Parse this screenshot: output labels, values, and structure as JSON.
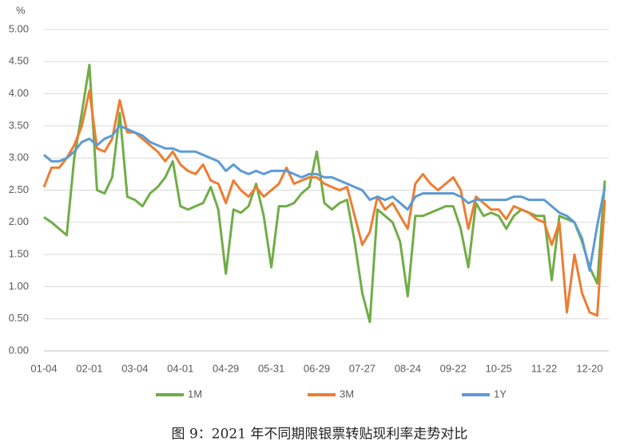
{
  "chart_data": {
    "type": "line",
    "y_label": "%",
    "caption": "图 9：2021 年不同期限银票转贴现利率走势对比",
    "categories": [
      "01-04",
      null,
      null,
      null,
      null,
      null,
      "02-01",
      null,
      null,
      null,
      null,
      null,
      "03-04",
      null,
      null,
      null,
      null,
      null,
      "04-01",
      null,
      null,
      null,
      null,
      null,
      "04-29",
      null,
      null,
      null,
      null,
      null,
      "05-31",
      null,
      null,
      null,
      null,
      null,
      "06-29",
      null,
      null,
      null,
      null,
      null,
      "07-27",
      null,
      null,
      null,
      null,
      null,
      "08-24",
      null,
      null,
      null,
      null,
      null,
      "09-22",
      null,
      null,
      null,
      null,
      null,
      "10-25",
      null,
      null,
      null,
      null,
      null,
      "11-22",
      null,
      null,
      null,
      null,
      null,
      "12-20",
      null,
      null
    ],
    "series": [
      {
        "name": "1M",
        "color": "#70ad47",
        "values": [
          2.08,
          2.0,
          1.9,
          1.8,
          3.0,
          3.7,
          4.45,
          2.5,
          2.45,
          2.7,
          3.7,
          2.4,
          2.35,
          2.25,
          2.45,
          2.55,
          2.7,
          2.95,
          2.25,
          2.2,
          2.25,
          2.3,
          2.55,
          2.2,
          1.2,
          2.2,
          2.15,
          2.25,
          2.6,
          2.1,
          1.3,
          2.25,
          2.25,
          2.3,
          2.45,
          2.55,
          3.1,
          2.3,
          2.2,
          2.3,
          2.35,
          1.7,
          0.9,
          0.45,
          2.2,
          2.1,
          2.0,
          1.7,
          0.85,
          2.1,
          2.1,
          2.15,
          2.2,
          2.25,
          2.25,
          1.9,
          1.3,
          2.3,
          2.1,
          2.15,
          2.1,
          1.9,
          2.1,
          2.2,
          2.15,
          2.1,
          2.1,
          1.1,
          2.1,
          2.05,
          2.0,
          1.7,
          1.3,
          1.05,
          2.65
        ]
      },
      {
        "name": "3M",
        "color": "#ed7d31",
        "values": [
          2.55,
          2.85,
          2.85,
          3.0,
          3.2,
          3.5,
          4.05,
          3.15,
          3.1,
          3.3,
          3.9,
          3.4,
          3.4,
          3.3,
          3.2,
          3.1,
          2.95,
          3.1,
          2.9,
          2.8,
          2.75,
          2.9,
          2.65,
          2.6,
          2.3,
          2.65,
          2.5,
          2.4,
          2.55,
          2.4,
          2.5,
          2.6,
          2.85,
          2.6,
          2.65,
          2.7,
          2.7,
          2.6,
          2.55,
          2.5,
          2.55,
          2.1,
          1.65,
          1.85,
          2.4,
          2.2,
          2.3,
          2.1,
          1.9,
          2.6,
          2.75,
          2.6,
          2.5,
          2.6,
          2.7,
          2.5,
          1.9,
          2.4,
          2.3,
          2.2,
          2.2,
          2.05,
          2.25,
          2.2,
          2.15,
          2.05,
          2.0,
          1.65,
          2.0,
          0.6,
          1.5,
          0.9,
          0.6,
          0.55,
          2.35
        ]
      },
      {
        "name": "1Y",
        "color": "#5b9bd5",
        "values": [
          3.05,
          2.95,
          2.95,
          3.0,
          3.1,
          3.25,
          3.3,
          3.2,
          3.3,
          3.35,
          3.5,
          3.45,
          3.4,
          3.35,
          3.25,
          3.2,
          3.15,
          3.15,
          3.1,
          3.1,
          3.1,
          3.05,
          3.0,
          2.95,
          2.8,
          2.9,
          2.8,
          2.75,
          2.8,
          2.75,
          2.8,
          2.8,
          2.8,
          2.75,
          2.7,
          2.75,
          2.75,
          2.7,
          2.7,
          2.65,
          2.6,
          2.55,
          2.5,
          2.35,
          2.4,
          2.35,
          2.4,
          2.3,
          2.2,
          2.4,
          2.45,
          2.45,
          2.45,
          2.45,
          2.45,
          2.4,
          2.3,
          2.35,
          2.35,
          2.35,
          2.35,
          2.35,
          2.4,
          2.4,
          2.35,
          2.35,
          2.35,
          2.25,
          2.15,
          2.1,
          2.0,
          1.75,
          1.25,
          1.95,
          2.55
        ]
      }
    ],
    "ylim": [
      0,
      5
    ],
    "yticks": [
      {
        "value": 0,
        "label": "0.00"
      },
      {
        "value": 0.5,
        "label": "0.50"
      },
      {
        "value": 1,
        "label": "1.00"
      },
      {
        "value": 1.5,
        "label": "1.50"
      },
      {
        "value": 2,
        "label": "2.00"
      },
      {
        "value": 2.5,
        "label": "2.50"
      },
      {
        "value": 3,
        "label": "3.00"
      },
      {
        "value": 3.5,
        "label": "3.50"
      },
      {
        "value": 4,
        "label": "4.00"
      },
      {
        "value": 4.5,
        "label": "4.50"
      },
      {
        "value": 5,
        "label": "5.00"
      }
    ],
    "grid": true,
    "legend": "bottom"
  }
}
